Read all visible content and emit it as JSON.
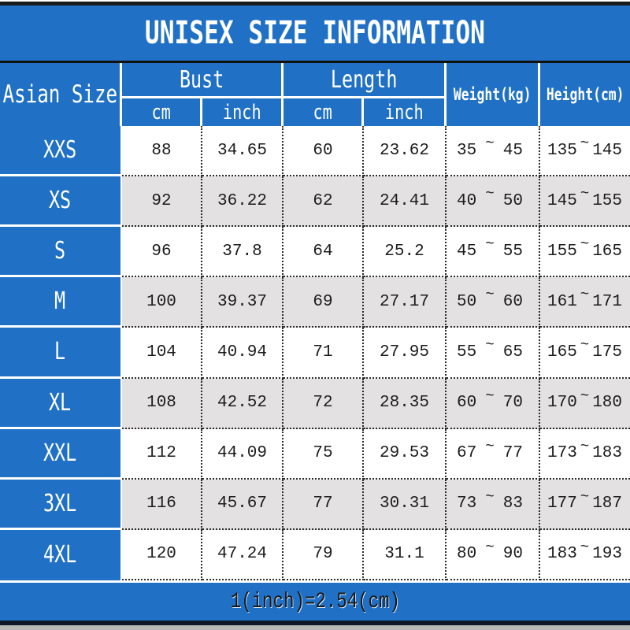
{
  "title": "UNISEX SIZE INFORMATION",
  "footer_note": "1(inch)=2.54(cm)",
  "colors": {
    "blue": "#2071c6",
    "alt": "#e3e1e2",
    "dot": "#2a2a2a",
    "txt": "#1c1c1c",
    "topbar": "#1a1a1a",
    "navy": "#0e1726",
    "strip": "#b7b7b7"
  },
  "table": {
    "corner_header": "Asian Size",
    "bust_header": "Bust",
    "length_header": "Length",
    "weight_header": "Weight(kg)",
    "height_header": "Height(cm)",
    "sub_cm": "cm",
    "sub_inch": "inch",
    "tilde": "~",
    "rows": [
      {
        "size": "XXS",
        "bust_cm": "88",
        "bust_inch": "34.65",
        "length_cm": "60",
        "length_inch": "23.62",
        "weight_min": "35",
        "weight_max": "45",
        "height_min": "135",
        "height_max": "145"
      },
      {
        "size": "XS",
        "bust_cm": "92",
        "bust_inch": "36.22",
        "length_cm": "62",
        "length_inch": "24.41",
        "weight_min": "40",
        "weight_max": "50",
        "height_min": "145",
        "height_max": "155"
      },
      {
        "size": "S",
        "bust_cm": "96",
        "bust_inch": "37.8",
        "length_cm": "64",
        "length_inch": "25.2",
        "weight_min": "45",
        "weight_max": "55",
        "height_min": "155",
        "height_max": "165"
      },
      {
        "size": "M",
        "bust_cm": "100",
        "bust_inch": "39.37",
        "length_cm": "69",
        "length_inch": "27.17",
        "weight_min": "50",
        "weight_max": "60",
        "height_min": "161",
        "height_max": "171"
      },
      {
        "size": "L",
        "bust_cm": "104",
        "bust_inch": "40.94",
        "length_cm": "71",
        "length_inch": "27.95",
        "weight_min": "55",
        "weight_max": "65",
        "height_min": "165",
        "height_max": "175"
      },
      {
        "size": "XL",
        "bust_cm": "108",
        "bust_inch": "42.52",
        "length_cm": "72",
        "length_inch": "28.35",
        "weight_min": "60",
        "weight_max": "70",
        "height_min": "170",
        "height_max": "180"
      },
      {
        "size": "XXL",
        "bust_cm": "112",
        "bust_inch": "44.09",
        "length_cm": "75",
        "length_inch": "29.53",
        "weight_min": "67",
        "weight_max": "77",
        "height_min": "173",
        "height_max": "183"
      },
      {
        "size": "3XL",
        "bust_cm": "116",
        "bust_inch": "45.67",
        "length_cm": "77",
        "length_inch": "30.31",
        "weight_min": "73",
        "weight_max": "83",
        "height_min": "177",
        "height_max": "187"
      },
      {
        "size": "4XL",
        "bust_cm": "120",
        "bust_inch": "47.24",
        "length_cm": "79",
        "length_inch": "31.1",
        "weight_min": "80",
        "weight_max": "90",
        "height_min": "183",
        "height_max": "193"
      }
    ]
  }
}
